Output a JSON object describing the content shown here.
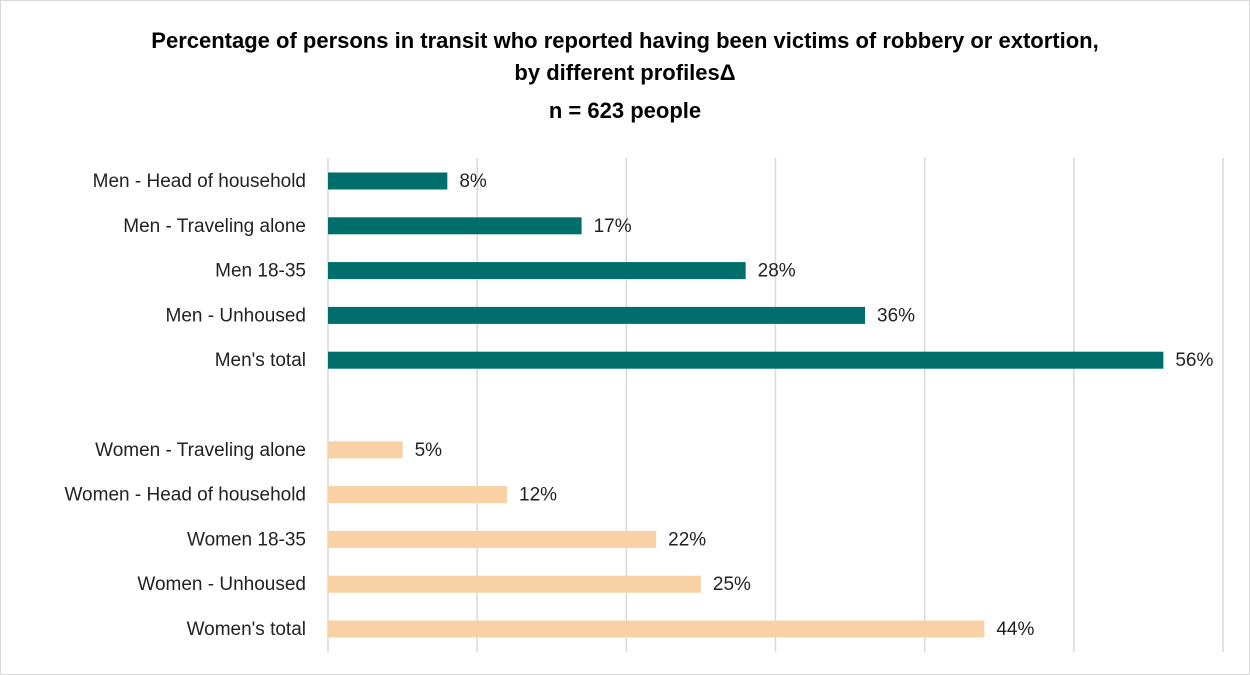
{
  "chart_data": {
    "type": "hbar",
    "title": "Percentage of persons in transit who reported having been victims of robbery or extortion, by different profilesΔ",
    "subtitle": "n = 623 people",
    "categories": [
      "Men - Head of household",
      "Men - Traveling alone",
      "Men 18-35",
      "Men - Unhoused",
      "Men's total",
      null,
      "Women - Traveling alone",
      "Women - Head of household",
      "Women 18-35",
      "Women - Unhoused",
      "Women's total"
    ],
    "values": [
      8,
      17,
      28,
      36,
      56,
      null,
      5,
      12,
      22,
      25,
      44
    ],
    "value_labels": [
      "8%",
      "17%",
      "28%",
      "36%",
      "56%",
      null,
      "5%",
      "12%",
      "22%",
      "25%",
      "44%"
    ],
    "colors": [
      "#006f6c",
      "#006f6c",
      "#006f6c",
      "#006f6c",
      "#006f6c",
      null,
      "#f8d1a4",
      "#f8d1a4",
      "#f8d1a4",
      "#f8d1a4",
      "#f8d1a4"
    ],
    "xlim": [
      0,
      60
    ],
    "xticks": [
      0,
      10,
      20,
      30,
      40,
      50,
      60
    ],
    "grid": true
  }
}
